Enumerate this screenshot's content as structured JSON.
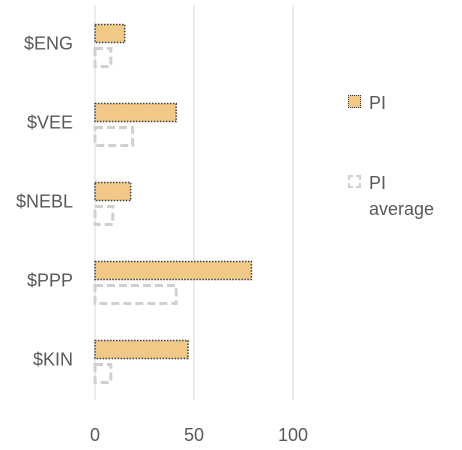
{
  "chart_data": {
    "type": "bar",
    "orientation": "horizontal",
    "categories": [
      "$ENG",
      "$VEE",
      "$NEBL",
      "$PPP",
      "$KIN"
    ],
    "series": [
      {
        "name": "PI",
        "color": "#f0c987",
        "values": [
          15,
          41,
          18,
          79,
          47
        ]
      },
      {
        "name": "PI average",
        "color": "#d0d0d0",
        "values": [
          8,
          19,
          9,
          41,
          8
        ]
      }
    ],
    "xlim": [
      0,
      100
    ],
    "xticks": [
      0,
      50,
      100
    ],
    "grid": true,
    "legend": "right"
  }
}
